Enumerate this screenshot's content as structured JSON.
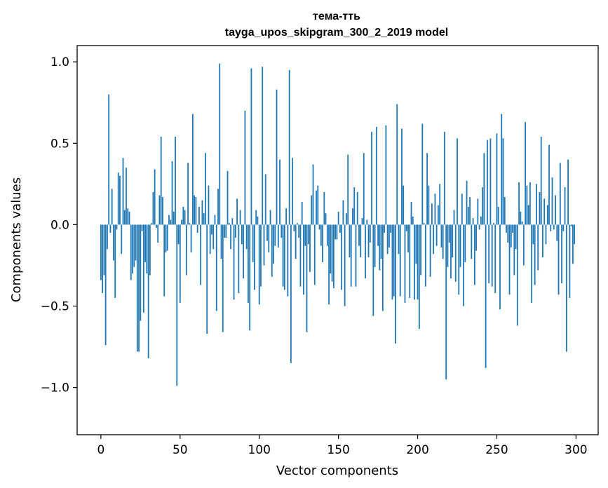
{
  "chart_data": {
    "type": "bar",
    "title": "тема-тть",
    "subtitle": "tayga_upos_skipgram_300_2_2019 model",
    "xlabel": "Vector components",
    "ylabel": "Components values",
    "xlim": [
      -15,
      314
    ],
    "ylim": [
      -1.29,
      1.1
    ],
    "xticks": [
      0,
      50,
      100,
      150,
      200,
      250,
      300
    ],
    "yticks": [
      -1.0,
      -0.5,
      0.0,
      0.5,
      1.0
    ],
    "xtick_labels": [
      "0",
      "50",
      "100",
      "150",
      "200",
      "250",
      "300"
    ],
    "ytick_labels": [
      "−1.0",
      "−0.5",
      "0.0",
      "0.5",
      "1.0"
    ],
    "grid": false,
    "bar_color": "#1f77b4",
    "values": [
      -0.34,
      -0.42,
      -0.31,
      -0.74,
      -0.15,
      0.8,
      -0.05,
      0.22,
      -0.22,
      -0.45,
      -0.03,
      0.32,
      0.3,
      -0.18,
      0.41,
      0.09,
      0.35,
      0.1,
      0.08,
      -0.34,
      -0.3,
      -0.26,
      -0.22,
      -0.78,
      -0.78,
      -0.59,
      -0.04,
      -0.54,
      -0.23,
      -0.3,
      -0.82,
      -0.31,
      0.01,
      0.2,
      0.34,
      -0.02,
      -0.11,
      0.18,
      0.54,
      0.17,
      -0.44,
      -0.17,
      -0.16,
      0.06,
      0.03,
      0.39,
      0.08,
      0.54,
      -0.99,
      -0.12,
      -0.48,
      0.03,
      0.11,
      0.09,
      -0.31,
      0.38,
      0.01,
      -0.17,
      0.68,
      0.18,
      0.17,
      -0.05,
      0.11,
      -0.37,
      0.15,
      0.07,
      0.44,
      -0.67,
      0.24,
      -0.18,
      -0.06,
      -0.15,
      0.06,
      -0.53,
      0.22,
      0.99,
      -0.21,
      -0.66,
      -0.08,
      -0.08,
      0.33,
      0.01,
      -0.15,
      0.04,
      -0.46,
      -0.08,
      0.16,
      -0.42,
      0.09,
      -0.12,
      -0.33,
      0.7,
      -0.15,
      -0.48,
      -0.65,
      0.96,
      -0.23,
      -0.4,
      0.09,
      0.05,
      -0.49,
      -0.38,
      0.97,
      -0.25,
      0.31,
      -0.1,
      -0.17,
      0.09,
      -0.32,
      -0.24,
      -0.13,
      0.83,
      -0.14,
      0.4,
      -0.08,
      -0.38,
      -0.4,
      0.1,
      -0.44,
      0.95,
      -0.85,
      0.41,
      -0.04,
      -0.21,
      0.01,
      -0.08,
      -0.38,
      0.14,
      -0.43,
      -0.13,
      -0.66,
      -0.12,
      -0.29,
      0.18,
      0.37,
      -0.37,
      0.21,
      0.24,
      -0.03,
      -0.13,
      -0.23,
      0.2,
      0.07,
      -0.13,
      -0.49,
      -0.3,
      -0.35,
      -0.39,
      -0.09,
      -0.09,
      0.08,
      -0.05,
      -0.4,
      0.15,
      -0.5,
      0.07,
      0.43,
      -0.2,
      -0.38,
      0.1,
      0.23,
      -0.38,
      0.2,
      -0.13,
      -0.2,
      0.04,
      0.44,
      -0.33,
      0.03,
      -0.2,
      -0.11,
      0.57,
      -0.56,
      -0.26,
      0.6,
      -0.13,
      -0.28,
      -0.21,
      -0.53,
      -0.05,
      0.61,
      -0.18,
      -0.14,
      -0.05,
      -0.46,
      -0.44,
      -0.73,
      0.74,
      -0.18,
      -0.44,
      0.59,
      0.24,
      -0.48,
      -0.04,
      -0.17,
      -0.45,
      0.14,
      0.05,
      -0.46,
      -0.24,
      -0.46,
      -0.64,
      -0.31,
      0.62,
      0.01,
      -0.38,
      0.44,
      0.24,
      -0.32,
      0.13,
      -0.18,
      0.19,
      -0.13,
      0.12,
      0.25,
      -0.14,
      -0.21,
      0.57,
      -0.95,
      -0.26,
      -0.11,
      -0.33,
      -0.2,
      0.09,
      -0.35,
      0.53,
      -0.43,
      -0.26,
      0.19,
      -0.5,
      -0.23,
      0.27,
      0.11,
      0.17,
      -0.21,
      0.04,
      -0.37,
      -0.16,
      0.16,
      -0.03,
      0.05,
      0.23,
      0.44,
      -0.88,
      0.52,
      -0.36,
      0.53,
      -0.38,
      0.01,
      -0.42,
      0.56,
      0.11,
      -0.52,
      0.68,
      0.53,
      0.17,
      -0.05,
      -0.11,
      -0.43,
      -0.14,
      -0.05,
      -0.31,
      -0.15,
      -0.62,
      0.26,
      0.08,
      0.02,
      -0.25,
      0.63,
      0.24,
      0.12,
      0.26,
      -0.48,
      -0.12,
      -0.37,
      0.25,
      -0.28,
      0.2,
      0.54,
      -0.2,
      0.16,
      -0.12,
      0.12,
      0.49,
      -0.04,
      0.29,
      -0.03,
      0.18,
      -0.1,
      -0.43,
      0.38,
      -0.36,
      -0.04,
      0.23,
      -0.78,
      0.4,
      -0.45,
      -0.01,
      -0.24,
      -0.12
    ]
  }
}
